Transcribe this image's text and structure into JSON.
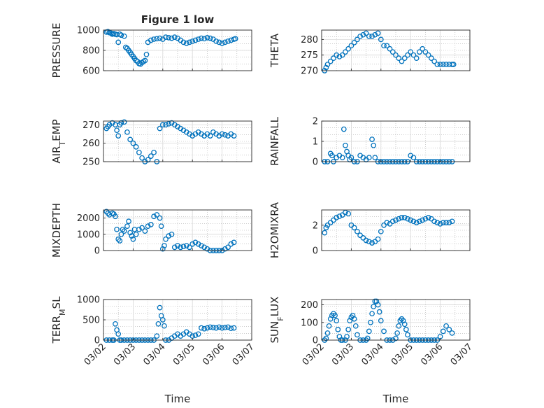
{
  "figure": {
    "title": "Figure 1 low",
    "xlabel": "Time",
    "marker_color": "#0072bd",
    "grid_color": "#b0b0b0",
    "axes_color": "#262626"
  },
  "chart_data": [
    {
      "type": "scatter",
      "id": "pressure",
      "title": "Figure 1 low",
      "ylabel": "PRESSURE",
      "ylim": [
        600,
        1000
      ],
      "yticks": [
        600,
        800,
        1000
      ],
      "xlim": [
        0,
        5
      ],
      "xticks": [],
      "xticklabels": [],
      "x": [
        0.1,
        0.15,
        0.2,
        0.25,
        0.3,
        0.35,
        0.4,
        0.45,
        0.5,
        0.55,
        0.6,
        0.7,
        0.75,
        0.8,
        0.85,
        0.9,
        0.95,
        1.0,
        1.05,
        1.1,
        1.15,
        1.2,
        1.25,
        1.3,
        1.35,
        1.4,
        1.45,
        1.5,
        1.6,
        1.7,
        1.8,
        1.9,
        2.0,
        2.1,
        2.2,
        2.3,
        2.4,
        2.5,
        2.6,
        2.7,
        2.8,
        2.9,
        3.0,
        3.1,
        3.2,
        3.3,
        3.4,
        3.5,
        3.6,
        3.7,
        3.8,
        3.9,
        4.0,
        4.1,
        4.2,
        4.3,
        4.4,
        4.45
      ],
      "y": [
        980,
        985,
        975,
        970,
        960,
        965,
        960,
        955,
        880,
        960,
        950,
        940,
        830,
        820,
        800,
        780,
        760,
        740,
        720,
        700,
        690,
        670,
        665,
        680,
        690,
        700,
        760,
        880,
        900,
        910,
        915,
        920,
        910,
        930,
        925,
        920,
        930,
        920,
        900,
        880,
        870,
        880,
        890,
        900,
        910,
        920,
        915,
        925,
        920,
        910,
        890,
        880,
        870,
        880,
        890,
        900,
        910,
        915
      ]
    },
    {
      "type": "scatter",
      "id": "theta",
      "ylabel": "THETA",
      "ylim": [
        270,
        283
      ],
      "yticks": [
        270,
        275,
        280
      ],
      "xlim": [
        0,
        5
      ],
      "xticks": [],
      "xticklabels": [],
      "x": [
        0.1,
        0.15,
        0.2,
        0.3,
        0.4,
        0.5,
        0.6,
        0.7,
        0.8,
        0.9,
        1.0,
        1.1,
        1.2,
        1.3,
        1.4,
        1.5,
        1.6,
        1.7,
        1.8,
        1.9,
        2.0,
        2.1,
        2.2,
        2.3,
        2.4,
        2.5,
        2.6,
        2.7,
        2.8,
        2.9,
        3.0,
        3.1,
        3.2,
        3.3,
        3.4,
        3.5,
        3.6,
        3.7,
        3.8,
        3.9,
        4.0,
        4.1,
        4.2,
        4.3,
        4.4,
        4.45
      ],
      "y": [
        270,
        271,
        272,
        273,
        274,
        275,
        274.5,
        275,
        276,
        277,
        278,
        279,
        280,
        281,
        281.5,
        282,
        281,
        281,
        281.5,
        282,
        280,
        278,
        278,
        277,
        276,
        275,
        274,
        273,
        274,
        275,
        276,
        275,
        274,
        276,
        277,
        276,
        275,
        274,
        273,
        272,
        272,
        272,
        272,
        272,
        272,
        272
      ]
    },
    {
      "type": "scatter",
      "id": "air-temp",
      "ylabel": "AIR_TEMP",
      "ylim": [
        250,
        272
      ],
      "yticks": [
        250,
        260,
        270
      ],
      "xlim": [
        0,
        5
      ],
      "xticks": [],
      "xticklabels": [],
      "x": [
        0.1,
        0.15,
        0.2,
        0.3,
        0.4,
        0.45,
        0.5,
        0.55,
        0.6,
        0.7,
        0.8,
        0.9,
        1.0,
        1.1,
        1.2,
        1.3,
        1.4,
        1.5,
        1.6,
        1.7,
        1.8,
        1.9,
        2.0,
        2.1,
        2.2,
        2.3,
        2.4,
        2.5,
        2.6,
        2.7,
        2.8,
        2.9,
        3.0,
        3.1,
        3.2,
        3.3,
        3.4,
        3.5,
        3.6,
        3.7,
        3.8,
        3.9,
        4.0,
        4.1,
        4.2,
        4.3,
        4.4
      ],
      "y": [
        268,
        269,
        270,
        271,
        270,
        267,
        264,
        270,
        271,
        271.5,
        266,
        262,
        260,
        258,
        255,
        252,
        250,
        251,
        253,
        255,
        250,
        268,
        270,
        270,
        270.5,
        271,
        270,
        269,
        268,
        267,
        266,
        265,
        264,
        265,
        266,
        265,
        264,
        265,
        264,
        266,
        265,
        264,
        265,
        264.5,
        264,
        265,
        264
      ]
    },
    {
      "type": "scatter",
      "id": "rainfall",
      "ylabel": "RAINFALL",
      "ylim": [
        0,
        2
      ],
      "yticks": [
        0,
        1,
        2
      ],
      "xlim": [
        0,
        5
      ],
      "xticks": [],
      "xticklabels": [],
      "x": [
        0.1,
        0.2,
        0.3,
        0.35,
        0.4,
        0.5,
        0.6,
        0.7,
        0.75,
        0.8,
        0.85,
        0.9,
        0.95,
        1.0,
        1.1,
        1.2,
        1.3,
        1.4,
        1.5,
        1.6,
        1.7,
        1.75,
        1.8,
        1.9,
        2.0,
        2.1,
        2.2,
        2.3,
        2.4,
        2.5,
        2.6,
        2.7,
        2.8,
        2.9,
        3.0,
        3.1,
        3.2,
        3.3,
        3.4,
        3.5,
        3.6,
        3.7,
        3.8,
        3.9,
        4.0,
        4.1,
        4.2,
        4.3,
        4.4
      ],
      "y": [
        0,
        0,
        0.4,
        0.3,
        0,
        0.2,
        0.3,
        0.2,
        1.6,
        0.8,
        0.5,
        0.3,
        0.1,
        0.2,
        0,
        0,
        0.3,
        0.2,
        0.1,
        0.2,
        1.1,
        0.8,
        0.2,
        0,
        0,
        0,
        0,
        0,
        0,
        0,
        0,
        0,
        0,
        0,
        0.3,
        0.2,
        0,
        0,
        0,
        0,
        0,
        0,
        0,
        0,
        0,
        0,
        0,
        0,
        0
      ]
    },
    {
      "type": "scatter",
      "id": "mixdepth",
      "ylabel": "MIXDEPTH",
      "ylim": [
        0,
        2500
      ],
      "yticks": [
        0,
        1000,
        2000
      ],
      "xlim": [
        0,
        5
      ],
      "xticks": [],
      "xticklabels": [],
      "x": [
        0.1,
        0.15,
        0.2,
        0.3,
        0.35,
        0.4,
        0.45,
        0.5,
        0.55,
        0.6,
        0.65,
        0.7,
        0.8,
        0.85,
        0.9,
        0.95,
        1.0,
        1.05,
        1.1,
        1.2,
        1.3,
        1.4,
        1.5,
        1.6,
        1.7,
        1.8,
        1.9,
        1.95,
        2.0,
        2.05,
        2.1,
        2.2,
        2.3,
        2.4,
        2.5,
        2.6,
        2.7,
        2.8,
        2.9,
        3.0,
        3.1,
        3.2,
        3.3,
        3.4,
        3.5,
        3.6,
        3.7,
        3.8,
        3.9,
        4.0,
        4.1,
        4.2,
        4.3,
        4.4
      ],
      "y": [
        2400,
        2300,
        2200,
        2300,
        2250,
        2100,
        1300,
        700,
        600,
        1000,
        1300,
        1200,
        1500,
        1800,
        1100,
        900,
        700,
        1300,
        1000,
        1300,
        1400,
        1200,
        1500,
        1600,
        2100,
        2200,
        2000,
        1500,
        100,
        300,
        700,
        900,
        1000,
        200,
        300,
        200,
        250,
        300,
        200,
        400,
        500,
        400,
        300,
        200,
        100,
        0,
        0,
        0,
        0,
        0,
        100,
        200,
        400,
        500
      ]
    },
    {
      "type": "scatter",
      "id": "h2omixra",
      "ylabel": "H2OMIXRA",
      "ylim": [
        0,
        3.2
      ],
      "yticks": [
        0,
        2
      ],
      "xlim": [
        0,
        5
      ],
      "xticks": [],
      "xticklabels": [],
      "x": [
        0.1,
        0.15,
        0.2,
        0.3,
        0.4,
        0.5,
        0.6,
        0.7,
        0.8,
        0.9,
        1.0,
        1.1,
        1.2,
        1.3,
        1.4,
        1.5,
        1.6,
        1.7,
        1.8,
        1.9,
        2.0,
        2.1,
        2.2,
        2.3,
        2.4,
        2.5,
        2.6,
        2.7,
        2.8,
        2.9,
        3.0,
        3.1,
        3.2,
        3.3,
        3.4,
        3.5,
        3.6,
        3.7,
        3.8,
        3.9,
        4.0,
        4.1,
        4.2,
        4.3,
        4.4
      ],
      "y": [
        1.4,
        1.8,
        2.0,
        2.2,
        2.4,
        2.6,
        2.7,
        2.8,
        3.0,
        2.9,
        2.0,
        1.8,
        1.5,
        1.2,
        1.0,
        0.8,
        0.7,
        0.6,
        0.7,
        0.9,
        1.5,
        2.0,
        2.2,
        2.1,
        2.3,
        2.4,
        2.5,
        2.6,
        2.6,
        2.5,
        2.4,
        2.3,
        2.2,
        2.3,
        2.4,
        2.5,
        2.6,
        2.5,
        2.3,
        2.2,
        2.1,
        2.2,
        2.2,
        2.2,
        2.3
      ]
    },
    {
      "type": "scatter",
      "id": "terr-msl",
      "ylabel": "TERR_MSL",
      "ylim": [
        0,
        1000
      ],
      "yticks": [
        0,
        500,
        1000
      ],
      "xlim": [
        0,
        5
      ],
      "xticks": [
        0,
        1,
        2,
        3,
        4,
        5
      ],
      "xticklabels": [
        "03/02",
        "03/03",
        "03/04",
        "03/05",
        "03/06",
        "03/07"
      ],
      "xlabel": "Time",
      "x": [
        0.1,
        0.2,
        0.3,
        0.35,
        0.4,
        0.45,
        0.5,
        0.55,
        0.6,
        0.7,
        0.8,
        0.9,
        1.0,
        1.1,
        1.2,
        1.3,
        1.4,
        1.5,
        1.6,
        1.7,
        1.8,
        1.85,
        1.9,
        1.95,
        2.0,
        2.05,
        2.1,
        2.2,
        2.3,
        2.4,
        2.5,
        2.6,
        2.7,
        2.8,
        2.9,
        3.0,
        3.1,
        3.2,
        3.3,
        3.4,
        3.5,
        3.6,
        3.7,
        3.8,
        3.9,
        4.0,
        4.1,
        4.2,
        4.3,
        4.4
      ],
      "y": [
        0,
        0,
        0,
        0,
        400,
        250,
        150,
        0,
        0,
        0,
        0,
        0,
        0,
        0,
        0,
        0,
        0,
        0,
        0,
        0,
        100,
        400,
        800,
        600,
        500,
        350,
        0,
        0,
        50,
        100,
        150,
        100,
        150,
        200,
        150,
        100,
        120,
        150,
        300,
        280,
        300,
        320,
        310,
        300,
        320,
        300,
        310,
        320,
        290,
        300
      ]
    },
    {
      "type": "scatter",
      "id": "sun-flux",
      "ylabel": "SUN_FLUX",
      "ylim": [
        0,
        230
      ],
      "yticks": [
        0,
        100,
        200
      ],
      "xlim": [
        0,
        5
      ],
      "xticks": [
        0,
        1,
        2,
        3,
        4,
        5
      ],
      "xticklabels": [
        "03/02",
        "03/03",
        "03/04",
        "03/05",
        "03/06",
        "03/07"
      ],
      "xlabel": "Time",
      "x": [
        0.1,
        0.15,
        0.2,
        0.25,
        0.3,
        0.35,
        0.4,
        0.45,
        0.5,
        0.55,
        0.6,
        0.65,
        0.7,
        0.8,
        0.85,
        0.9,
        0.95,
        1.0,
        1.05,
        1.1,
        1.15,
        1.2,
        1.3,
        1.4,
        1.5,
        1.55,
        1.6,
        1.65,
        1.7,
        1.75,
        1.8,
        1.85,
        1.9,
        1.95,
        2.0,
        2.1,
        2.2,
        2.3,
        2.4,
        2.5,
        2.55,
        2.6,
        2.65,
        2.7,
        2.75,
        2.8,
        2.85,
        2.9,
        3.0,
        3.1,
        3.2,
        3.3,
        3.4,
        3.5,
        3.6,
        3.7,
        3.8,
        3.9,
        4.0,
        4.1,
        4.2,
        4.3,
        4.4
      ],
      "y": [
        0,
        10,
        40,
        80,
        120,
        140,
        150,
        140,
        110,
        60,
        20,
        0,
        0,
        0,
        20,
        60,
        110,
        130,
        140,
        120,
        80,
        30,
        0,
        0,
        0,
        10,
        50,
        100,
        150,
        190,
        220,
        220,
        200,
        160,
        110,
        50,
        0,
        0,
        0,
        10,
        40,
        80,
        110,
        120,
        110,
        90,
        60,
        30,
        0,
        0,
        0,
        0,
        0,
        0,
        0,
        0,
        0,
        0,
        20,
        50,
        80,
        60,
        40
      ]
    }
  ]
}
